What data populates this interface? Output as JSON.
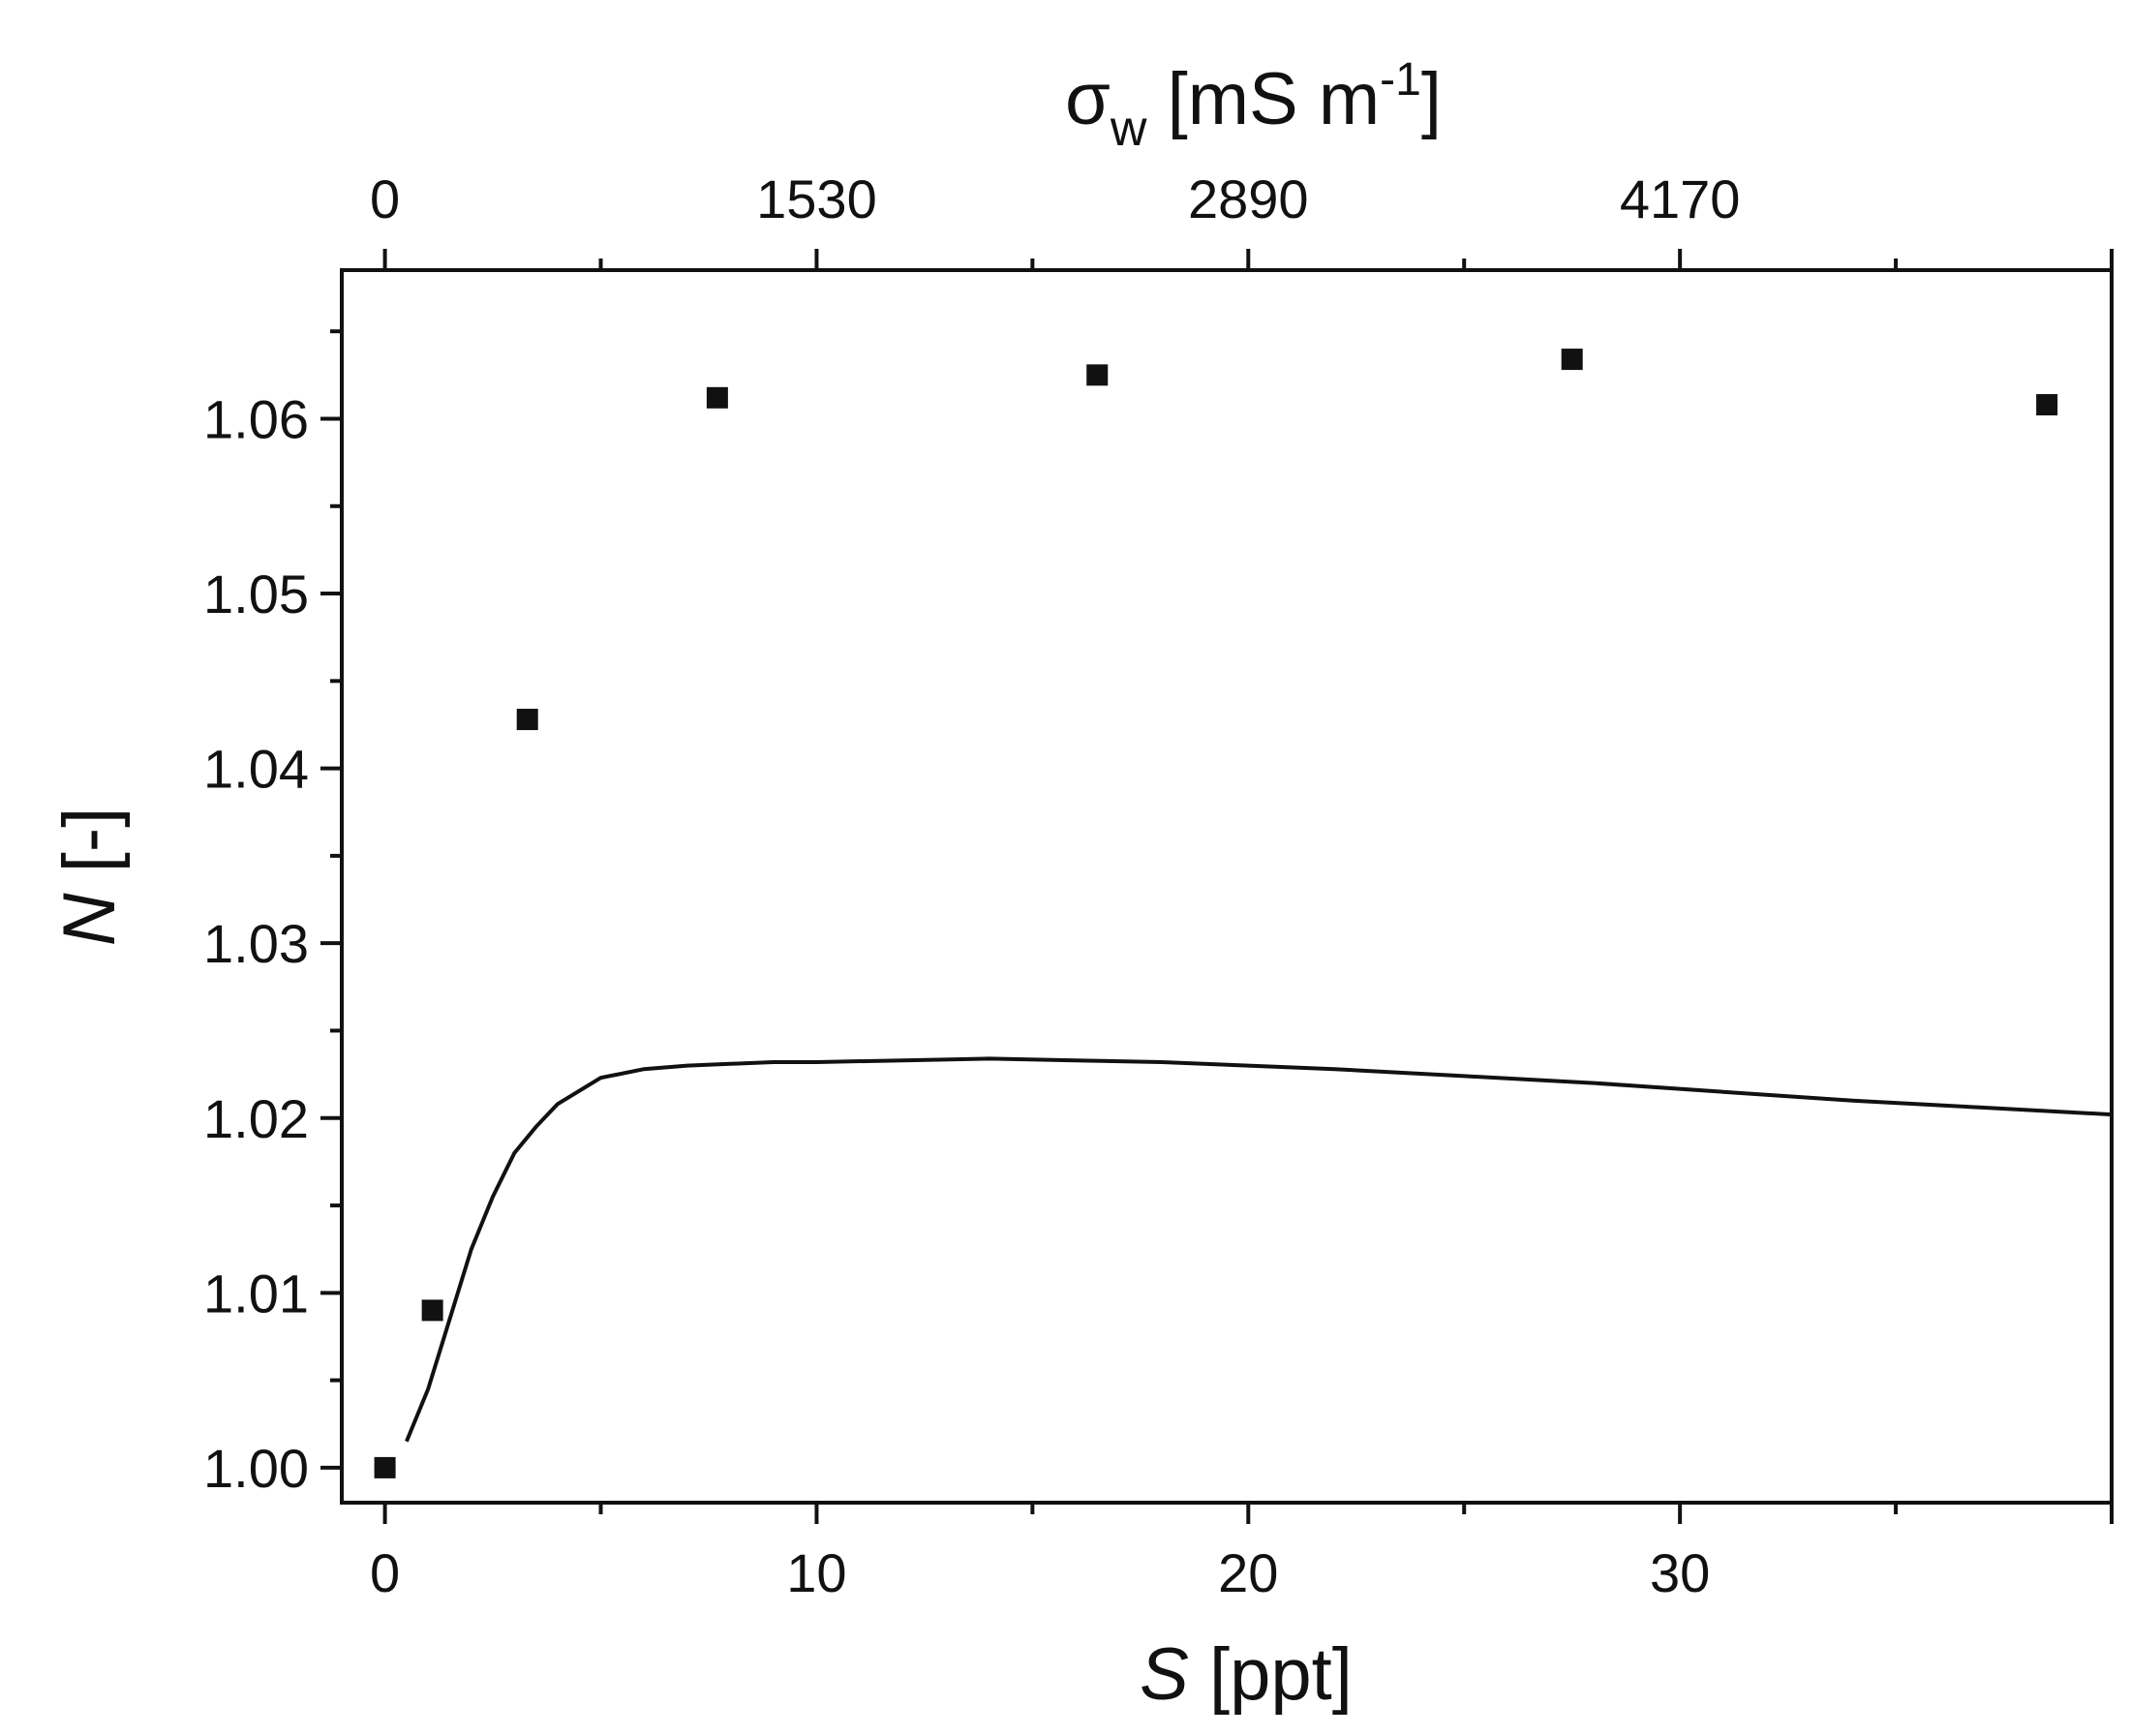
{
  "chart_data": {
    "type": "scatter",
    "title": "",
    "bottom_axis": {
      "symbol": "S",
      "unit": "[ppt]",
      "range": [
        -1,
        40
      ],
      "ticks": [
        0,
        10,
        20,
        30
      ],
      "tick_labels": [
        "0",
        "10",
        "20",
        "30"
      ]
    },
    "top_axis": {
      "symbol": "σ",
      "subscript": "w",
      "unit_open": "[mS m",
      "unit_sup": "-1",
      "unit_close": "]",
      "tick_labels": [
        "0",
        "1530",
        "2890",
        "4170"
      ],
      "tick_positions_S": [
        0,
        10,
        20,
        30
      ]
    },
    "left_axis": {
      "symbol": "N",
      "unit": "[-]",
      "range": [
        0.998,
        1.0685
      ],
      "ticks": [
        1.0,
        1.01,
        1.02,
        1.03,
        1.04,
        1.05,
        1.06
      ],
      "tick_labels": [
        "1.00",
        "1.01",
        "1.02",
        "1.03",
        "1.04",
        "1.05",
        "1.06"
      ]
    },
    "series": [
      {
        "kind": "scatter",
        "marker": "square",
        "color": "#111111",
        "x": [
          0.0,
          1.1,
          3.3,
          7.7,
          16.5,
          27.5,
          38.5
        ],
        "y": [
          1.0,
          1.009,
          1.0428,
          1.0612,
          1.0625,
          1.0634,
          1.0608
        ]
      },
      {
        "kind": "line",
        "color": "#111111",
        "x": [
          0.5,
          1.0,
          1.5,
          2.0,
          2.5,
          3.0,
          3.5,
          4.0,
          5.0,
          6.0,
          7.0,
          8.0,
          9.0,
          10.0,
          12.0,
          14.0,
          16.0,
          18.0,
          20.0,
          22.0,
          25.0,
          28.0,
          31.0,
          34.0,
          37.0,
          40.0
        ],
        "y": [
          1.0015,
          1.0045,
          1.0085,
          1.0125,
          1.0155,
          1.018,
          1.0195,
          1.0208,
          1.0223,
          1.0228,
          1.023,
          1.0231,
          1.0232,
          1.0232,
          1.0233,
          1.0234,
          1.0233,
          1.0232,
          1.023,
          1.0228,
          1.0224,
          1.022,
          1.0215,
          1.021,
          1.0206,
          1.0202
        ]
      }
    ],
    "grid": false,
    "legend": null
  }
}
